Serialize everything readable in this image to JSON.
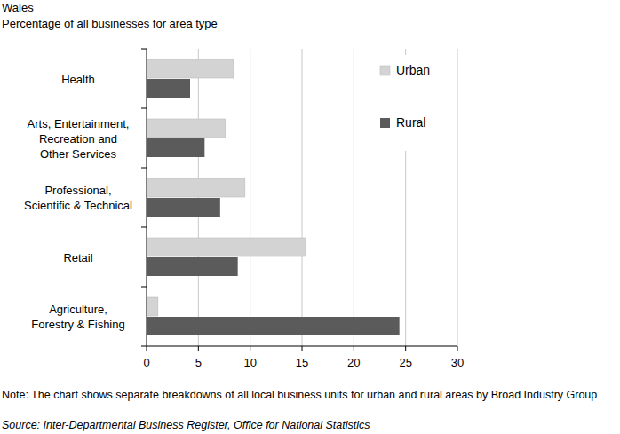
{
  "chart_data": {
    "type": "bar",
    "orientation": "horizontal",
    "title": "Wales",
    "subtitle": "Percentage of all businesses for area type",
    "note": "Note: The chart shows separate breakdowns of all local business units for urban and rural areas by Broad Industry Group",
    "source": "Source: Inter-Departmental Business Register, Office for National Statistics",
    "categories": [
      "Health",
      "Arts, Entertainment,\nRecreation and\nOther Services",
      "Professional,\nScientific & Technical",
      "Retail",
      "Agriculture,\nForestry & Fishing"
    ],
    "series": [
      {
        "name": "Urban",
        "color": "#d3d3d3",
        "values": [
          8.4,
          7.6,
          9.5,
          15.3,
          1.1
        ]
      },
      {
        "name": "Rural",
        "color": "#5b5b5b",
        "values": [
          4.2,
          5.6,
          7.1,
          8.8,
          24.4
        ]
      }
    ],
    "xlim": [
      0,
      30
    ],
    "xticks": [
      0,
      5,
      10,
      15,
      20,
      25,
      30
    ],
    "grid": true,
    "legend": "top-right"
  }
}
